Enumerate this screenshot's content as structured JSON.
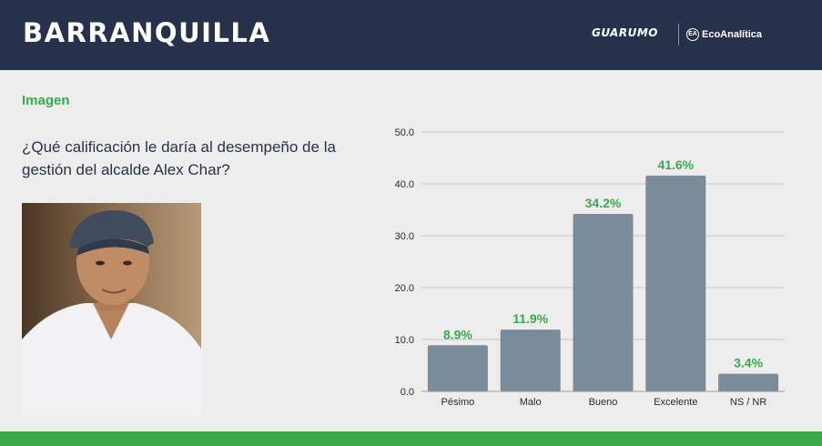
{
  "header": {
    "title": "BARRANQUILLA",
    "logo_guarumo": "GUARUMO",
    "logo_eco": "EcoAnalítica",
    "logo_eco_mark": "EA"
  },
  "section_label": "Imagen",
  "question": "¿Qué calificación le daría al desempeño de la gestión del alcalde Alex Char?",
  "colors": {
    "header_bg": "#26324b",
    "accent_green": "#3aaa49",
    "bar": "#7a8c99",
    "background": "#ededed"
  },
  "chart_data": {
    "type": "bar",
    "categories": [
      "Pésimo",
      "Malo",
      "Bueno",
      "Excelente",
      "NS / NR"
    ],
    "values": [
      8.9,
      11.9,
      34.2,
      41.6,
      3.4
    ],
    "data_labels": [
      "8.9%",
      "11.9%",
      "34.2%",
      "41.6%",
      "3.4%"
    ],
    "yticks": [
      "0.0",
      "10.0",
      "20.0",
      "30.0",
      "40.0",
      "50.0"
    ],
    "ylim": [
      0,
      50
    ],
    "grid": true,
    "title": "",
    "xlabel": "",
    "ylabel": ""
  }
}
